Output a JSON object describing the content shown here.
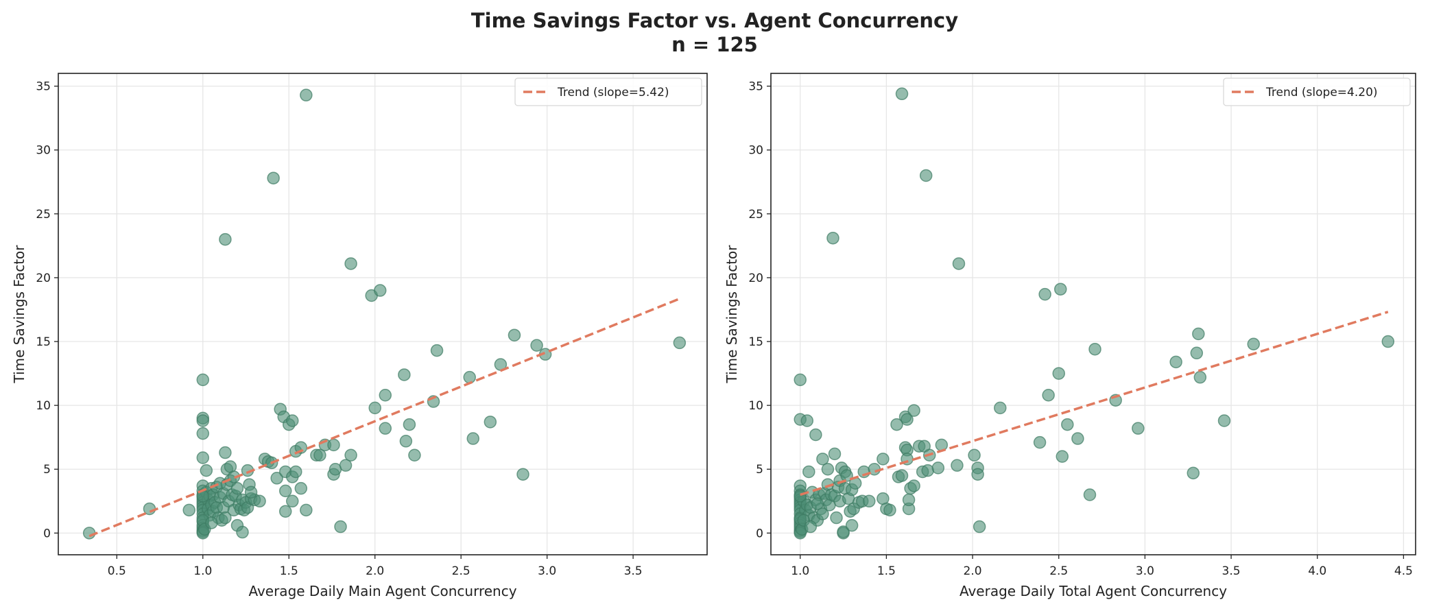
{
  "title": "Time Savings Factor vs. Agent Concurrency",
  "subtitle": "n = 125",
  "colors": {
    "points": "#4f8f77",
    "point_edge": "#3d7a63",
    "trend": "#e07a5f",
    "grid": "#e6e6e6",
    "axes": "#222222"
  },
  "chart_data": [
    {
      "type": "scatter",
      "xlabel": "Average Daily Main Agent Concurrency",
      "ylabel": "Time Savings Factor",
      "xlim": [
        0.16,
        3.93
      ],
      "ylim": [
        -1.7,
        36
      ],
      "xticks": [
        0.5,
        1.0,
        1.5,
        2.0,
        2.5,
        3.0,
        3.5
      ],
      "xtick_labels": [
        "0.5",
        "1.0",
        "1.5",
        "2.0",
        "2.5",
        "3.0",
        "3.5"
      ],
      "yticks": [
        0,
        5,
        10,
        15,
        20,
        25,
        30,
        35
      ],
      "ytick_labels": [
        "0",
        "5",
        "10",
        "15",
        "20",
        "25",
        "30",
        "35"
      ],
      "grid": true,
      "legend_position": "top-right",
      "trend": {
        "label": "Trend (slope=5.42)",
        "slope": 5.42,
        "intercept": -2.08,
        "x_range": [
          0.34,
          3.77
        ]
      },
      "points": [
        [
          0.34,
          0
        ],
        [
          0.69,
          1.9
        ],
        [
          0.92,
          1.8
        ],
        [
          1,
          12.0
        ],
        [
          1,
          9.0
        ],
        [
          1,
          8.8
        ],
        [
          1,
          7.8
        ],
        [
          1,
          5.9
        ],
        [
          1,
          3.7
        ],
        [
          1,
          3.3
        ],
        [
          1,
          3.0
        ],
        [
          1,
          2.8
        ],
        [
          1,
          2.6
        ],
        [
          1,
          2.4
        ],
        [
          1,
          2.2
        ],
        [
          1,
          2.0
        ],
        [
          1,
          1.8
        ],
        [
          1,
          1.5
        ],
        [
          1,
          1.2
        ],
        [
          1,
          0.9
        ],
        [
          1,
          0.6
        ],
        [
          1,
          0.4
        ],
        [
          1,
          0.2
        ],
        [
          1,
          0.1
        ],
        [
          1,
          0.0
        ],
        [
          1.02,
          4.9
        ],
        [
          1.02,
          3.2
        ],
        [
          1.03,
          2.6
        ],
        [
          1.03,
          1.9
        ],
        [
          1.04,
          2.9
        ],
        [
          1.04,
          1.4
        ],
        [
          1.05,
          3.5
        ],
        [
          1.05,
          2.2
        ],
        [
          1.06,
          1.7
        ],
        [
          1.06,
          3.0
        ],
        [
          1.07,
          2.4
        ],
        [
          1.08,
          2.0
        ],
        [
          1.08,
          3.6
        ],
        [
          1.09,
          1.2
        ],
        [
          1.1,
          3.9
        ],
        [
          1.1,
          2.8
        ],
        [
          1.11,
          1.0
        ],
        [
          1.12,
          3.1
        ],
        [
          1.12,
          2.0
        ],
        [
          1.13,
          1.2
        ],
        [
          1.14,
          3.8
        ],
        [
          1.15,
          2.5
        ],
        [
          1.16,
          4.1
        ],
        [
          1.17,
          3.0
        ],
        [
          1.18,
          1.8
        ],
        [
          1.19,
          2.9
        ],
        [
          1.2,
          3.5
        ],
        [
          1.21,
          2.2
        ],
        [
          1.22,
          1.9
        ],
        [
          1.23,
          2.6
        ],
        [
          1.24,
          1.8
        ],
        [
          1.25,
          2.4
        ],
        [
          1.26,
          2.0
        ],
        [
          1.28,
          2.7
        ],
        [
          1.3,
          2.6
        ],
        [
          1.33,
          2.5
        ],
        [
          1.13,
          23.0
        ],
        [
          1.13,
          6.3
        ],
        [
          1.14,
          5.0
        ],
        [
          1.16,
          5.2
        ],
        [
          1.18,
          4.4
        ],
        [
          1.2,
          0.6
        ],
        [
          1.23,
          0.07
        ],
        [
          1.26,
          4.9
        ],
        [
          1.27,
          3.8
        ],
        [
          1.28,
          3.2
        ],
        [
          1.36,
          5.8
        ],
        [
          1.38,
          5.6
        ],
        [
          1.4,
          5.5
        ],
        [
          1.41,
          27.8
        ],
        [
          1.43,
          4.3
        ],
        [
          1.45,
          9.7
        ],
        [
          1.47,
          9.1
        ],
        [
          1.48,
          4.8
        ],
        [
          1.48,
          3.3
        ],
        [
          1.48,
          1.7
        ],
        [
          1.5,
          8.5
        ],
        [
          1.52,
          8.8
        ],
        [
          1.52,
          4.4
        ],
        [
          1.52,
          2.5
        ],
        [
          1.54,
          4.8
        ],
        [
          1.54,
          6.4
        ],
        [
          1.57,
          6.7
        ],
        [
          1.57,
          3.5
        ],
        [
          1.6,
          1.8
        ],
        [
          1.6,
          34.3
        ],
        [
          1.66,
          6.1
        ],
        [
          1.68,
          6.1
        ],
        [
          1.71,
          6.9
        ],
        [
          1.76,
          6.9
        ],
        [
          1.76,
          4.6
        ],
        [
          1.77,
          5.0
        ],
        [
          1.8,
          0.5
        ],
        [
          1.83,
          5.3
        ],
        [
          1.86,
          6.1
        ],
        [
          1.86,
          21.1
        ],
        [
          1.98,
          18.6
        ],
        [
          2.03,
          19.0
        ],
        [
          2.0,
          9.8
        ],
        [
          2.06,
          10.8
        ],
        [
          2.06,
          8.2
        ],
        [
          2.17,
          12.4
        ],
        [
          2.18,
          7.2
        ],
        [
          2.2,
          8.5
        ],
        [
          2.23,
          6.1
        ],
        [
          2.34,
          10.3
        ],
        [
          2.36,
          14.3
        ],
        [
          2.55,
          12.2
        ],
        [
          2.57,
          7.4
        ],
        [
          2.67,
          8.7
        ],
        [
          2.73,
          13.2
        ],
        [
          2.81,
          15.5
        ],
        [
          2.86,
          4.6
        ],
        [
          2.94,
          14.7
        ],
        [
          2.99,
          14.0
        ],
        [
          3.77,
          14.9
        ],
        [
          1.0,
          2.9
        ],
        [
          1.0,
          1.0
        ],
        [
          1.01,
          0.3
        ],
        [
          1.05,
          0.8
        ]
      ]
    },
    {
      "type": "scatter",
      "xlabel": "Average Daily Total Agent Concurrency",
      "ylabel": "Time Savings Factor",
      "xlim": [
        0.83,
        4.57
      ],
      "ylim": [
        -1.7,
        36
      ],
      "xticks": [
        1.0,
        1.5,
        2.0,
        2.5,
        3.0,
        3.5,
        4.0,
        4.5
      ],
      "xtick_labels": [
        "1.0",
        "1.5",
        "2.0",
        "2.5",
        "3.0",
        "3.5",
        "4.0",
        "4.5"
      ],
      "yticks": [
        0,
        5,
        10,
        15,
        20,
        25,
        30,
        35
      ],
      "ytick_labels": [
        "0",
        "5",
        "10",
        "15",
        "20",
        "25",
        "30",
        "35"
      ],
      "grid": true,
      "legend_position": "top-right",
      "trend": {
        "label": "Trend (slope=4.20)",
        "slope": 4.2,
        "intercept": -1.2,
        "x_range": [
          1.0,
          4.41
        ]
      },
      "points": [
        [
          1,
          12.0
        ],
        [
          1,
          8.9
        ],
        [
          1,
          3.7
        ],
        [
          1,
          3.3
        ],
        [
          1,
          3.0
        ],
        [
          1,
          2.8
        ],
        [
          1,
          2.6
        ],
        [
          1,
          2.4
        ],
        [
          1,
          2.2
        ],
        [
          1,
          2.0
        ],
        [
          1,
          1.8
        ],
        [
          1,
          1.5
        ],
        [
          1,
          1.2
        ],
        [
          1,
          1.0
        ],
        [
          1,
          0.8
        ],
        [
          1,
          0.6
        ],
        [
          1,
          0.4
        ],
        [
          1,
          0.2
        ],
        [
          1,
          0.1
        ],
        [
          1,
          0.0
        ],
        [
          1.02,
          2.5
        ],
        [
          1.03,
          1.8
        ],
        [
          1.04,
          8.8
        ],
        [
          1.04,
          2.2
        ],
        [
          1.05,
          4.8
        ],
        [
          1.05,
          1.4
        ],
        [
          1.06,
          2.0
        ],
        [
          1.07,
          3.2
        ],
        [
          1.08,
          1.2
        ],
        [
          1.09,
          7.7
        ],
        [
          1.09,
          2.6
        ],
        [
          1.1,
          1.0
        ],
        [
          1.11,
          3.0
        ],
        [
          1.12,
          1.9
        ],
        [
          1.13,
          5.8
        ],
        [
          1.13,
          1.5
        ],
        [
          1.14,
          3.1
        ],
        [
          1.15,
          2.6
        ],
        [
          1.16,
          5.0
        ],
        [
          1.16,
          3.8
        ],
        [
          1.17,
          2.2
        ],
        [
          1.18,
          3.0
        ],
        [
          1.19,
          23.1
        ],
        [
          1.2,
          6.2
        ],
        [
          1.2,
          2.9
        ],
        [
          1.21,
          1.2
        ],
        [
          1.22,
          3.6
        ],
        [
          1.23,
          4.1
        ],
        [
          1.23,
          2.5
        ],
        [
          1.24,
          5.1
        ],
        [
          1.25,
          0.0
        ],
        [
          1.25,
          0.1
        ],
        [
          1.26,
          4.8
        ],
        [
          1.26,
          3.5
        ],
        [
          1.27,
          4.5
        ],
        [
          1.28,
          2.7
        ],
        [
          1.29,
          1.7
        ],
        [
          1.3,
          3.4
        ],
        [
          1.3,
          0.6
        ],
        [
          1.31,
          1.9
        ],
        [
          1.32,
          3.9
        ],
        [
          1.34,
          2.4
        ],
        [
          1.36,
          2.5
        ],
        [
          1.37,
          4.8
        ],
        [
          1.4,
          2.5
        ],
        [
          1.43,
          5.0
        ],
        [
          1.48,
          5.8
        ],
        [
          1.48,
          2.7
        ],
        [
          1.5,
          1.9
        ],
        [
          1.52,
          1.8
        ],
        [
          1.56,
          8.5
        ],
        [
          1.57,
          4.4
        ],
        [
          1.59,
          4.5
        ],
        [
          1.59,
          34.4
        ],
        [
          1.61,
          9.1
        ],
        [
          1.62,
          8.9
        ],
        [
          1.61,
          6.7
        ],
        [
          1.62,
          6.5
        ],
        [
          1.62,
          5.8
        ],
        [
          1.64,
          3.5
        ],
        [
          1.63,
          1.9
        ],
        [
          1.63,
          2.6
        ],
        [
          1.66,
          9.6
        ],
        [
          1.66,
          3.7
        ],
        [
          1.69,
          6.8
        ],
        [
          1.71,
          4.8
        ],
        [
          1.72,
          6.8
        ],
        [
          1.73,
          28.0
        ],
        [
          1.74,
          4.9
        ],
        [
          1.75,
          6.1
        ],
        [
          1.8,
          5.1
        ],
        [
          1.82,
          6.9
        ],
        [
          1.91,
          5.3
        ],
        [
          1.92,
          21.1
        ],
        [
          2.01,
          6.1
        ],
        [
          2.03,
          5.1
        ],
        [
          2.03,
          4.6
        ],
        [
          2.04,
          0.5
        ],
        [
          2.16,
          9.8
        ],
        [
          2.39,
          7.1
        ],
        [
          2.42,
          18.7
        ],
        [
          2.44,
          10.8
        ],
        [
          2.5,
          12.5
        ],
        [
          2.51,
          19.1
        ],
        [
          2.52,
          6.0
        ],
        [
          2.55,
          8.5
        ],
        [
          2.61,
          7.4
        ],
        [
          2.68,
          3.0
        ],
        [
          2.71,
          14.4
        ],
        [
          2.83,
          10.4
        ],
        [
          2.96,
          8.2
        ],
        [
          3.18,
          13.4
        ],
        [
          3.3,
          14.1
        ],
        [
          3.31,
          15.6
        ],
        [
          3.32,
          12.2
        ],
        [
          3.28,
          4.7
        ],
        [
          3.46,
          8.8
        ],
        [
          3.63,
          14.8
        ],
        [
          4.41,
          15.0
        ],
        [
          1.0,
          1.1
        ],
        [
          1.0,
          2.9
        ],
        [
          1.01,
          0.3
        ],
        [
          1.02,
          1.0
        ],
        [
          1.06,
          0.5
        ],
        [
          1.1,
          2.3
        ]
      ]
    }
  ]
}
